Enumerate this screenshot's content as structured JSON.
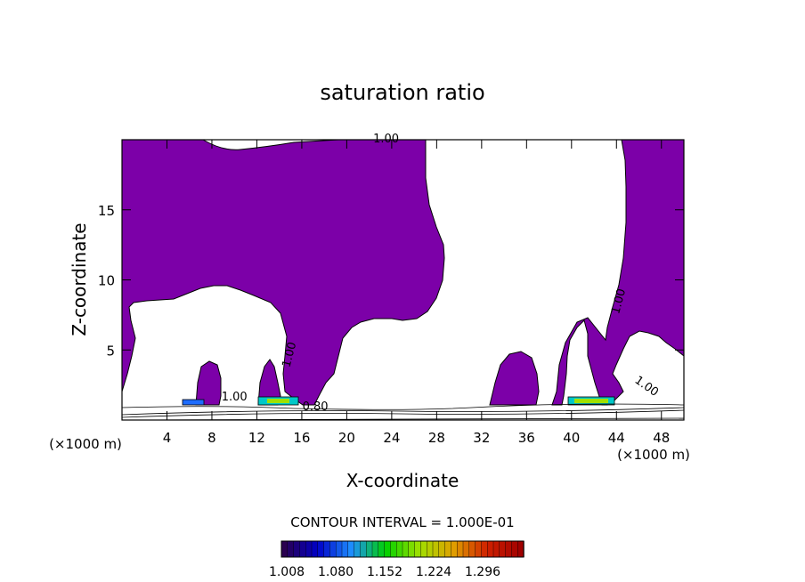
{
  "chart_data": {
    "type": "heatmap",
    "title": "saturation ratio",
    "xlabel": "X-coordinate",
    "ylabel": "Z-coordinate",
    "x_unit": "(×1000 m)",
    "z_unit": "(×1000 m)",
    "xlim": [
      0,
      50
    ],
    "ylim": [
      0,
      20
    ],
    "x_ticks": [
      4,
      8,
      12,
      16,
      20,
      24,
      28,
      32,
      36,
      40,
      44,
      48
    ],
    "y_ticks": [
      5,
      10,
      15
    ],
    "contour_interval_label": "CONTOUR INTERVAL = 1.000E-01",
    "contour_labels": [
      {
        "text": "1.00",
        "x": 23.5,
        "z": 19.8
      },
      {
        "text": "1.00",
        "x": 44.5,
        "z": 8.4
      },
      {
        "text": "1.00",
        "x": 15.2,
        "z": 4.6
      },
      {
        "text": "1.00",
        "x": 46.5,
        "z": 2.2
      },
      {
        "text": "1.00",
        "x": 10.0,
        "z": 1.4
      },
      {
        "text": "0.80",
        "x": 17.2,
        "z": 0.7
      }
    ],
    "colorbar": {
      "ticks": [
        "1.008",
        "1.080",
        "1.152",
        "1.224",
        "1.296"
      ],
      "colors": [
        "#2a0050",
        "#0000c8",
        "#1e90ff",
        "#00d000",
        "#a0e000",
        "#e0a000",
        "#d02000",
        "#a00000"
      ]
    },
    "fill_color": "#7c00a8"
  }
}
